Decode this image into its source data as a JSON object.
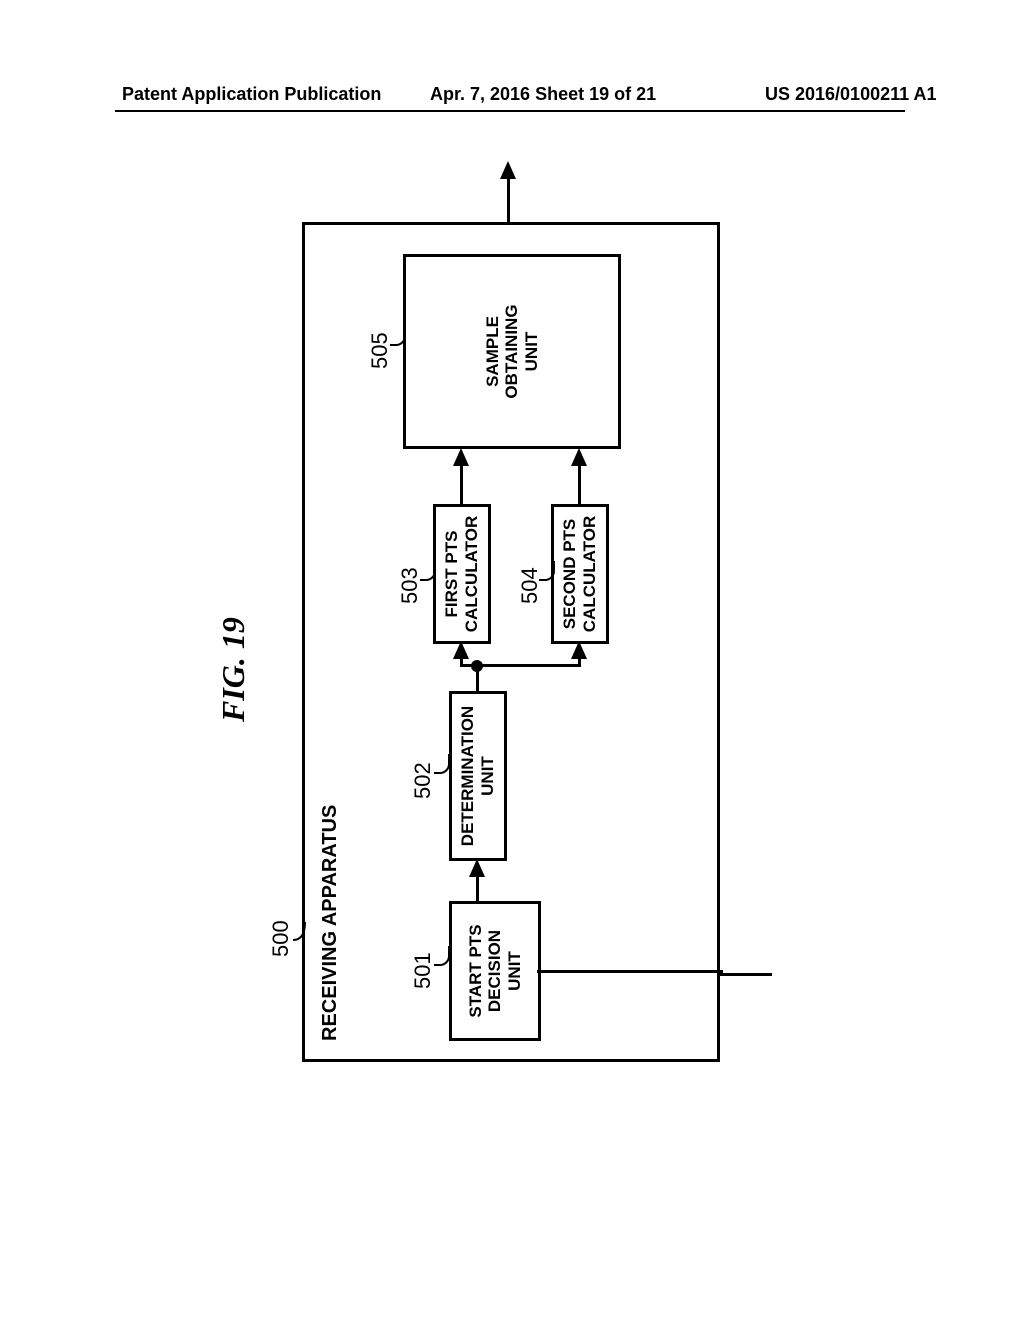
{
  "header": {
    "left": "Patent Application Publication",
    "center": "Apr. 7, 2016  Sheet 19 of 21",
    "right": "US 2016/0100211 A1"
  },
  "figure": {
    "title": "FIG. 19",
    "main_ref": "500",
    "main_label": "RECEIVING APPARATUS",
    "nodes": [
      {
        "ref": "501",
        "label": "START PTS\nDECISION\nUNIT"
      },
      {
        "ref": "502",
        "label": "DETERMINATION\nUNIT"
      },
      {
        "ref": "503",
        "label": "FIRST PTS\nCALCULATOR"
      },
      {
        "ref": "504",
        "label": "SECOND PTS\nCALCULATOR"
      },
      {
        "ref": "505",
        "label": "SAMPLE\nOBTAINING\nUNIT"
      }
    ],
    "colors": {
      "stroke": "#000000",
      "background": "#ffffff",
      "text": "#000000"
    },
    "line_width": 3,
    "font": {
      "family": "Arial",
      "node_size": 17,
      "ref_size": 22,
      "title_size": 32,
      "title_style": "italic",
      "weight": "bold"
    }
  }
}
